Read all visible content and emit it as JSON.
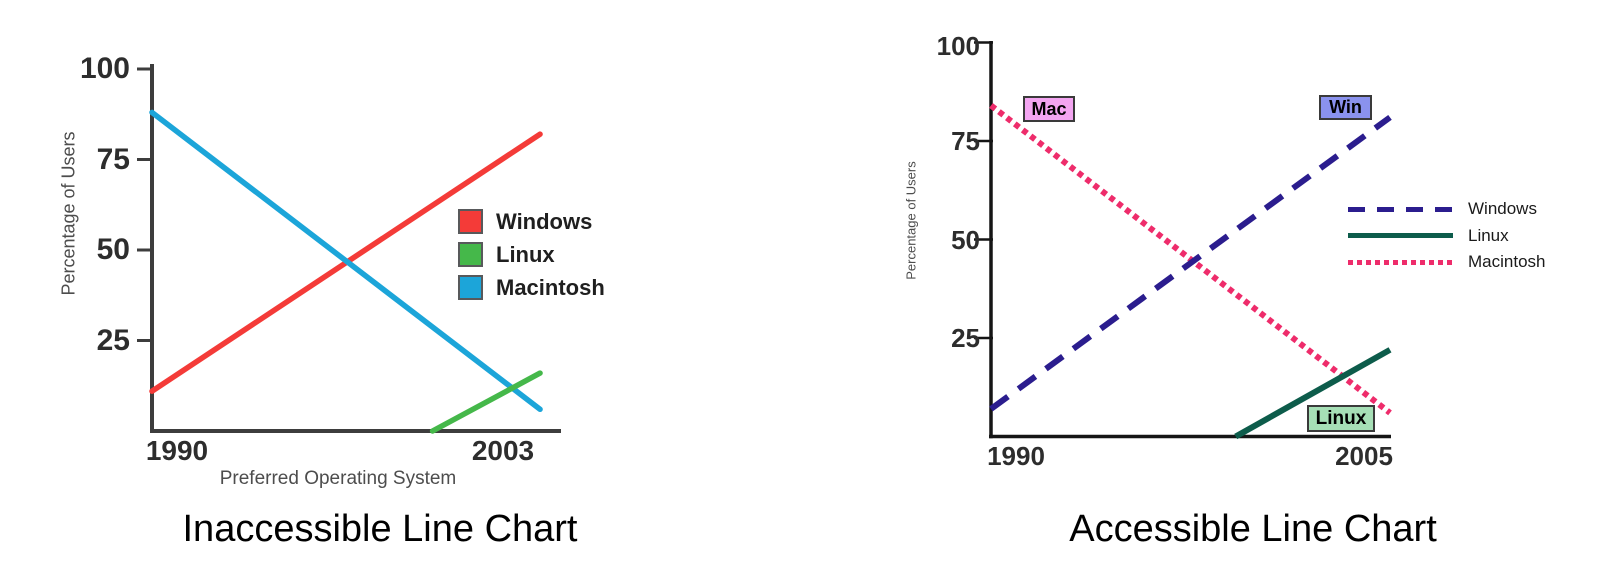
{
  "chart_data": [
    {
      "type": "line",
      "title": "Inaccessible Line Chart",
      "xlabel": "Preferred Operating System",
      "ylabel": "Percentage of Users",
      "x_ticks": [
        "1990",
        "2003"
      ],
      "y_ticks": [
        "100",
        "75",
        "50",
        "25"
      ],
      "xlim": [
        1990,
        2003
      ],
      "ylim": [
        0,
        100
      ],
      "grid": false,
      "legend_position": "right-middle",
      "legend_marker": "square",
      "series": [
        {
          "name": "Windows",
          "color": "#f43b38",
          "line_style": "solid",
          "points": [
            [
              1990,
              11
            ],
            [
              2003,
              82
            ]
          ]
        },
        {
          "name": "Linux",
          "color": "#45b84a",
          "line_style": "solid",
          "points": [
            [
              1999.4,
              0
            ],
            [
              2003,
              16
            ]
          ]
        },
        {
          "name": "Macintosh",
          "color": "#1ca5d9",
          "line_style": "solid",
          "points": [
            [
              1990,
              88
            ],
            [
              2003,
              6
            ]
          ]
        }
      ]
    },
    {
      "type": "line",
      "title": "Accessible Line Chart",
      "xlabel": "",
      "ylabel": "Percentage of Users",
      "x_ticks": [
        "1990",
        "2005"
      ],
      "y_ticks": [
        "100",
        "75",
        "50",
        "25"
      ],
      "xlim": [
        1990,
        2005
      ],
      "ylim": [
        0,
        100
      ],
      "grid": false,
      "legend_position": "right-middle",
      "legend_marker": "line",
      "series": [
        {
          "name": "Windows",
          "color": "#2b1d8e",
          "line_style": "dashed",
          "points": [
            [
              1990,
              7
            ],
            [
              2005,
              81
            ]
          ]
        },
        {
          "name": "Linux",
          "color": "#0d5c4b",
          "line_style": "solid",
          "points": [
            [
              1999.2,
              0
            ],
            [
              2005,
              22
            ]
          ]
        },
        {
          "name": "Macintosh",
          "color": "#ee2c6b",
          "line_style": "dotted",
          "points": [
            [
              1990,
              84
            ],
            [
              2005,
              6
            ]
          ]
        }
      ],
      "annotations": [
        {
          "text": "Mac",
          "fill": "#f3a5f1",
          "series": "Macintosh"
        },
        {
          "text": "Win",
          "fill": "#8a92ee",
          "series": "Windows"
        },
        {
          "text": "Linux",
          "fill": "#a6dfb6",
          "series": "Linux"
        }
      ]
    }
  ]
}
